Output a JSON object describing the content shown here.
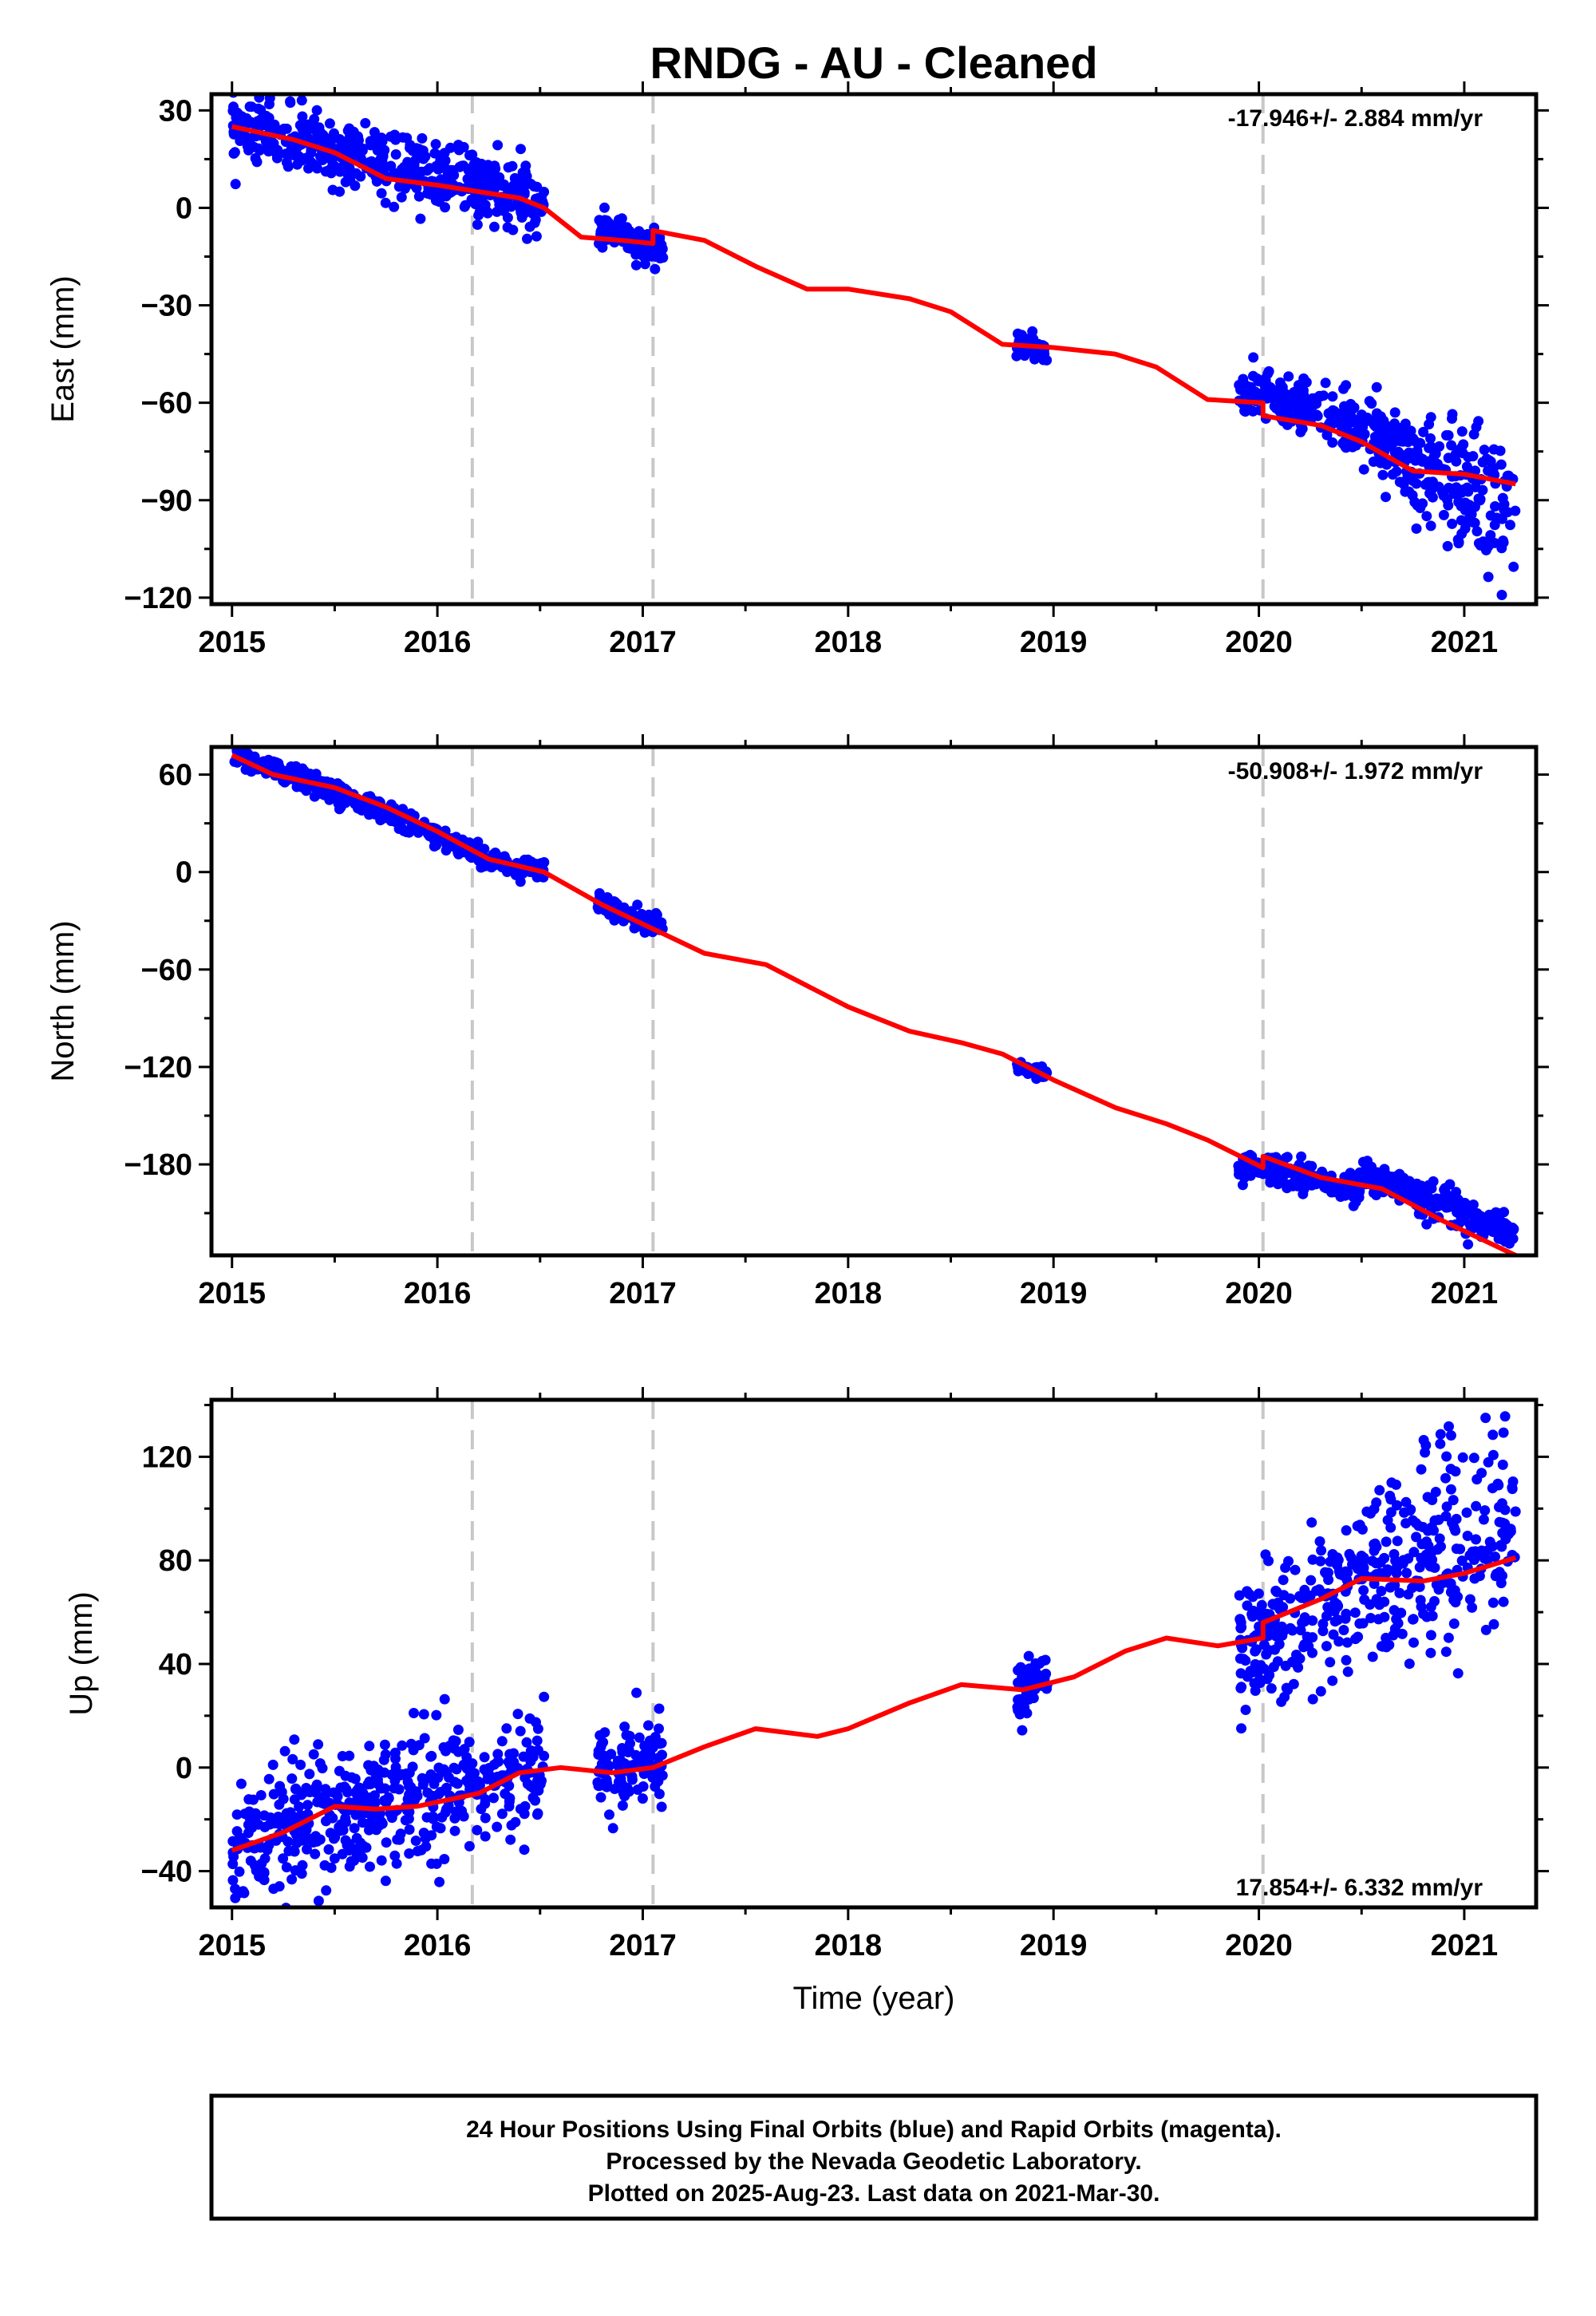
{
  "title": "RNDG  - AU - Cleaned",
  "xlabel": "Time (year)",
  "colors": {
    "final_orbits": "#0000ff",
    "model": "#ff0000",
    "breaks": "#c8c8c8"
  },
  "footer": {
    "line1": "24 Hour Positions Using Final Orbits (blue) and Rapid Orbits (magenta).",
    "line2": "Processed by the Nevada Geodetic Laboratory.",
    "line3": "Plotted on 2025-Aug-23. Last data on 2021-Mar-30."
  },
  "chart_data": [
    {
      "type": "scatter",
      "ylabel": "East (mm)",
      "rate": "-17.946+/- 2.884 mm/yr",
      "xlim": [
        2014.9,
        2021.35
      ],
      "ylim": [
        -122,
        35
      ],
      "xticks": [
        2015,
        2016,
        2017,
        2018,
        2019,
        2020,
        2021
      ],
      "yticks": [
        30,
        0,
        -30,
        -60,
        -90,
        -120
      ],
      "breaks": [
        2016.17,
        2017.05,
        2020.02
      ],
      "data_segments": [
        {
          "x0": 2015.0,
          "x1": 2016.52,
          "y0": 25,
          "y1": 2,
          "noise": 5
        },
        {
          "x0": 2016.78,
          "x1": 2017.1,
          "y0": -7,
          "y1": -13,
          "noise": 2.5
        },
        {
          "x0": 2018.82,
          "x1": 2018.97,
          "y0": -42,
          "y1": -44,
          "noise": 2
        },
        {
          "x0": 2019.9,
          "x1": 2020.3,
          "y0": -56,
          "y1": -62,
          "noise": 3.5
        },
        {
          "x0": 2020.3,
          "x1": 2020.75,
          "y0": -62,
          "y1": -76,
          "noise": 6
        },
        {
          "x0": 2020.75,
          "x1": 2021.25,
          "y0": -80,
          "y1": -95,
          "noise": 10
        }
      ],
      "model": {
        "x": [
          2015.0,
          2015.3,
          2015.5,
          2015.75,
          2016.0,
          2016.2,
          2016.4,
          2016.52,
          2016.7,
          2016.9,
          2017.05,
          2017.05,
          2017.3,
          2017.55,
          2017.8,
          2018.0,
          2018.3,
          2018.5,
          2018.75,
          2019.0,
          2019.3,
          2019.5,
          2019.75,
          2020.02,
          2020.02,
          2020.3,
          2020.5,
          2020.75,
          2021.0,
          2021.25
        ],
        "y": [
          25,
          21,
          17,
          9,
          7,
          5,
          3,
          0,
          -9,
          -10,
          -11,
          -7,
          -10,
          -18,
          -25,
          -25,
          -28,
          -32,
          -42,
          -43,
          -45,
          -49,
          -59,
          -60,
          -64,
          -67,
          -72,
          -81,
          -82,
          -85
        ]
      }
    },
    {
      "type": "scatter",
      "ylabel": "North (mm)",
      "rate": "-50.908+/- 1.972 mm/yr",
      "xlim": [
        2014.9,
        2021.35
      ],
      "ylim": [
        -236,
        77
      ],
      "xticks": [
        2015,
        2016,
        2017,
        2018,
        2019,
        2020,
        2021
      ],
      "yticks": [
        60,
        0,
        -60,
        -120,
        -180
      ],
      "breaks": [
        2016.17,
        2017.05,
        2020.02
      ],
      "data_segments": [
        {
          "x0": 2015.0,
          "x1": 2015.5,
          "y0": 72,
          "y1": 50,
          "noise": 3
        },
        {
          "x0": 2015.5,
          "x1": 2016.2,
          "y0": 50,
          "y1": 12,
          "noise": 3
        },
        {
          "x0": 2016.2,
          "x1": 2016.52,
          "y0": 8,
          "y1": 0,
          "noise": 3
        },
        {
          "x0": 2016.78,
          "x1": 2017.1,
          "y0": -18,
          "y1": -35,
          "noise": 3
        },
        {
          "x0": 2018.82,
          "x1": 2018.97,
          "y0": -120,
          "y1": -125,
          "noise": 2
        },
        {
          "x0": 2019.9,
          "x1": 2020.5,
          "y0": -180,
          "y1": -195,
          "noise": 5
        },
        {
          "x0": 2020.5,
          "x1": 2021.25,
          "y0": -185,
          "y1": -225,
          "noise": 5
        }
      ],
      "model": {
        "x": [
          2015.0,
          2015.2,
          2015.5,
          2015.75,
          2016.0,
          2016.25,
          2016.52,
          2016.8,
          2017.05,
          2017.3,
          2017.6,
          2017.8,
          2018.0,
          2018.3,
          2018.55,
          2018.75,
          2019.0,
          2019.3,
          2019.55,
          2019.75,
          2020.02,
          2020.02,
          2020.3,
          2020.6,
          2020.9,
          2021.25
        ],
        "y": [
          72,
          60,
          52,
          40,
          25,
          8,
          0,
          -20,
          -35,
          -50,
          -57,
          -70,
          -83,
          -98,
          -105,
          -112,
          -128,
          -145,
          -155,
          -165,
          -182,
          -175,
          -188,
          -195,
          -215,
          -236
        ]
      }
    },
    {
      "type": "scatter",
      "ylabel": "Up (mm)",
      "rate": "17.854+/- 6.332 mm/yr",
      "xlim": [
        2014.9,
        2021.35
      ],
      "ylim": [
        -54,
        142
      ],
      "xticks": [
        2015,
        2016,
        2017,
        2018,
        2019,
        2020,
        2021
      ],
      "yticks": [
        120,
        80,
        40,
        0,
        -40
      ],
      "breaks": [
        2016.17,
        2017.05,
        2020.02
      ],
      "data_segments": [
        {
          "x0": 2015.0,
          "x1": 2016.52,
          "y0": -28,
          "y1": 2,
          "noise": 12
        },
        {
          "x0": 2016.78,
          "x1": 2017.1,
          "y0": -2,
          "y1": 2,
          "noise": 8
        },
        {
          "x0": 2018.82,
          "x1": 2018.97,
          "y0": 28,
          "y1": 36,
          "noise": 6
        },
        {
          "x0": 2019.9,
          "x1": 2020.5,
          "y0": 45,
          "y1": 70,
          "noise": 14
        },
        {
          "x0": 2020.5,
          "x1": 2021.25,
          "y0": 70,
          "y1": 95,
          "noise": 20
        }
      ],
      "model": {
        "x": [
          2015.0,
          2015.25,
          2015.5,
          2015.7,
          2015.9,
          2016.2,
          2016.4,
          2016.6,
          2016.85,
          2017.05,
          2017.3,
          2017.55,
          2017.85,
          2018.0,
          2018.3,
          2018.55,
          2018.85,
          2019.1,
          2019.35,
          2019.55,
          2019.8,
          2020.02,
          2020.02,
          2020.3,
          2020.5,
          2020.8,
          2021.0,
          2021.25
        ],
        "y": [
          -32,
          -25,
          -15,
          -16,
          -15,
          -10,
          -2,
          0,
          -2,
          0,
          8,
          15,
          12,
          15,
          25,
          32,
          30,
          35,
          45,
          50,
          47,
          50,
          56,
          65,
          73,
          72,
          75,
          81
        ]
      }
    }
  ]
}
